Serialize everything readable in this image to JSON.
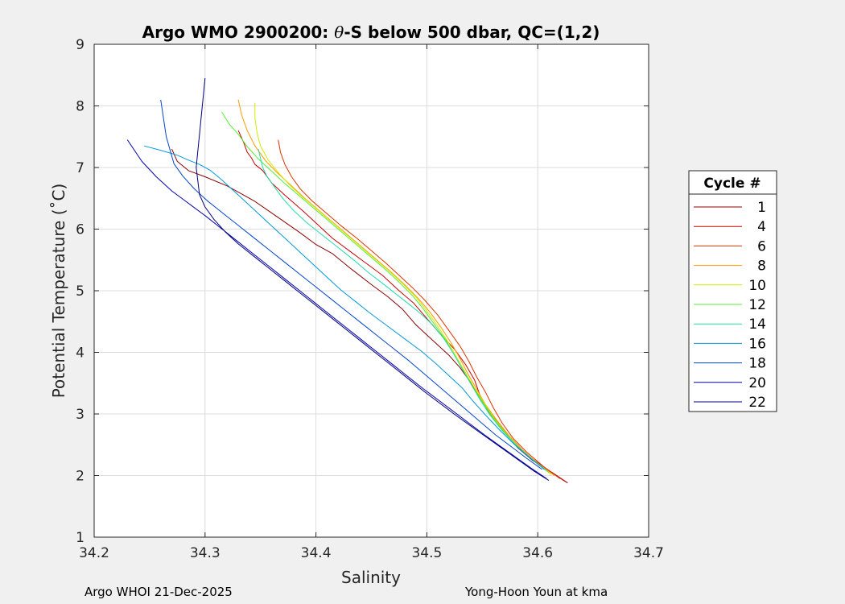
{
  "chart_data": {
    "type": "line",
    "title_prefix": "Argo WMO 2900200: ",
    "title_theta": "θ",
    "title_suffix": "-S below 500 dbar,  QC=(1,2)",
    "xlabel": "Salinity",
    "ylabel": "Potential Temperature (˚C)",
    "xlim": [
      34.2,
      34.7
    ],
    "ylim": [
      1,
      9
    ],
    "xticks": [
      "34.2",
      "34.3",
      "34.4",
      "34.5",
      "34.6",
      "34.7"
    ],
    "yticks": [
      "1",
      "2",
      "3",
      "4",
      "5",
      "6",
      "7",
      "8",
      "9"
    ],
    "grid": true,
    "legend": {
      "title": "Cycle #",
      "placement": "outside-right",
      "entries": [
        "1",
        "4",
        "6",
        "8",
        "10",
        "12",
        "14",
        "16",
        "18",
        "20",
        "22"
      ]
    },
    "series": [
      {
        "name": "1",
        "color": "#8b0000",
        "S": [
          34.627,
          34.613,
          34.595,
          34.582,
          34.571,
          34.56,
          34.55,
          34.54,
          34.53,
          34.52,
          34.505,
          34.49,
          34.478,
          34.465,
          34.45,
          34.432,
          34.415,
          34.4,
          34.385,
          34.365,
          34.345,
          34.32,
          34.3,
          34.285,
          34.275,
          34.27
        ],
        "T": [
          1.88,
          2.05,
          2.25,
          2.45,
          2.7,
          2.95,
          3.2,
          3.5,
          3.75,
          3.95,
          4.2,
          4.45,
          4.7,
          4.9,
          5.1,
          5.35,
          5.6,
          5.75,
          5.95,
          6.2,
          6.45,
          6.7,
          6.85,
          6.95,
          7.1,
          7.3
        ]
      },
      {
        "name": "4",
        "color": "#cc0000",
        "S": [
          34.625,
          34.61,
          34.593,
          34.578,
          34.565,
          34.555,
          34.548,
          34.543,
          34.535,
          34.525,
          34.512,
          34.5,
          34.488,
          34.475,
          34.46,
          34.445,
          34.43,
          34.415,
          34.4,
          34.388,
          34.372,
          34.36,
          34.352,
          34.345,
          34.342,
          34.338,
          34.335,
          34.33
        ],
        "T": [
          1.9,
          2.08,
          2.3,
          2.55,
          2.8,
          3.05,
          3.3,
          3.55,
          3.8,
          4.05,
          4.3,
          4.55,
          4.8,
          5.0,
          5.25,
          5.45,
          5.65,
          5.85,
          6.1,
          6.3,
          6.55,
          6.75,
          6.95,
          7.05,
          7.15,
          7.25,
          7.4,
          7.6
        ]
      },
      {
        "name": "6",
        "color": "#dd3300",
        "S": [
          34.62,
          34.605,
          34.59,
          34.578,
          34.568,
          34.56,
          34.553,
          34.545,
          34.538,
          34.53,
          34.52,
          34.51,
          34.498,
          34.487,
          34.475,
          34.463,
          34.45,
          34.437,
          34.423,
          34.41,
          34.397,
          34.386,
          34.378,
          34.372,
          34.368,
          34.366
        ],
        "T": [
          1.95,
          2.15,
          2.38,
          2.6,
          2.85,
          3.1,
          3.35,
          3.6,
          3.85,
          4.1,
          4.35,
          4.6,
          4.85,
          5.05,
          5.25,
          5.45,
          5.65,
          5.85,
          6.05,
          6.25,
          6.45,
          6.65,
          6.85,
          7.05,
          7.25,
          7.45
        ]
      },
      {
        "name": "8",
        "color": "#ff9900",
        "S": [
          34.615,
          34.6,
          34.586,
          34.574,
          34.563,
          34.553,
          34.545,
          34.537,
          34.53,
          34.522,
          34.513,
          34.503,
          34.492,
          34.48,
          34.468,
          34.455,
          34.442,
          34.429,
          34.416,
          34.403,
          34.39,
          34.378,
          34.366,
          34.355,
          34.345,
          34.338,
          34.333,
          34.33
        ],
        "T": [
          2.0,
          2.2,
          2.42,
          2.65,
          2.9,
          3.15,
          3.4,
          3.65,
          3.9,
          4.15,
          4.4,
          4.65,
          4.88,
          5.1,
          5.3,
          5.5,
          5.7,
          5.9,
          6.1,
          6.3,
          6.5,
          6.7,
          6.9,
          7.1,
          7.35,
          7.6,
          7.85,
          8.1
        ]
      },
      {
        "name": "10",
        "color": "#ccee00",
        "S": [
          34.612,
          34.598,
          34.584,
          34.572,
          34.561,
          34.552,
          34.543,
          34.535,
          34.527,
          34.519,
          34.51,
          34.5,
          34.49,
          34.478,
          34.466,
          34.453,
          34.44,
          34.427,
          34.414,
          34.401,
          34.388,
          34.376,
          34.366,
          34.357,
          34.35,
          34.347,
          34.345,
          34.345
        ],
        "T": [
          2.02,
          2.22,
          2.44,
          2.67,
          2.92,
          3.17,
          3.42,
          3.67,
          3.92,
          4.17,
          4.42,
          4.67,
          4.9,
          5.12,
          5.32,
          5.52,
          5.72,
          5.92,
          6.12,
          6.32,
          6.52,
          6.72,
          6.92,
          7.12,
          7.35,
          7.55,
          7.8,
          8.05
        ]
      },
      {
        "name": "12",
        "color": "#55ee33",
        "S": [
          34.61,
          34.596,
          34.582,
          34.57,
          34.559,
          34.55,
          34.541,
          34.533,
          34.525,
          34.517,
          34.507,
          34.497,
          34.487,
          34.475,
          34.463,
          34.45,
          34.437,
          34.424,
          34.411,
          34.398,
          34.385,
          34.372,
          34.36,
          34.348,
          34.338,
          34.33,
          34.322,
          34.315
        ],
        "T": [
          2.05,
          2.25,
          2.47,
          2.7,
          2.95,
          3.2,
          3.45,
          3.7,
          3.95,
          4.2,
          4.45,
          4.7,
          4.92,
          5.14,
          5.34,
          5.54,
          5.74,
          5.94,
          6.14,
          6.34,
          6.54,
          6.74,
          6.94,
          7.14,
          7.34,
          7.54,
          7.7,
          7.9
        ]
      },
      {
        "name": "14",
        "color": "#22ddaa",
        "S": [
          34.608,
          34.594,
          34.58,
          34.568,
          34.557,
          34.548,
          34.54,
          34.532,
          34.524,
          34.515,
          34.505,
          34.495,
          34.484,
          34.472,
          34.46,
          34.447,
          34.434,
          34.42,
          34.406,
          34.392,
          34.38,
          34.37,
          34.362,
          34.356,
          34.352,
          34.35,
          34.348
        ],
        "T": [
          2.08,
          2.28,
          2.5,
          2.73,
          2.98,
          3.23,
          3.48,
          3.73,
          3.98,
          4.23,
          4.45,
          4.62,
          4.78,
          4.95,
          5.12,
          5.3,
          5.5,
          5.7,
          5.9,
          6.1,
          6.3,
          6.5,
          6.7,
          6.85,
          7.0,
          7.15,
          7.3
        ]
      },
      {
        "name": "16",
        "color": "#0099dd",
        "S": [
          34.606,
          34.592,
          34.578,
          34.565,
          34.553,
          34.542,
          34.532,
          34.52,
          34.508,
          34.495,
          34.48,
          34.465,
          34.45,
          34.436,
          34.422,
          34.41,
          34.398,
          34.386,
          34.374,
          34.362,
          34.35,
          34.338,
          34.326,
          34.315,
          34.305,
          34.295,
          34.285,
          34.275,
          34.26,
          34.245
        ],
        "T": [
          2.1,
          2.3,
          2.52,
          2.75,
          2.98,
          3.2,
          3.42,
          3.62,
          3.82,
          4.02,
          4.22,
          4.42,
          4.62,
          4.82,
          5.02,
          5.22,
          5.42,
          5.62,
          5.82,
          6.02,
          6.22,
          6.42,
          6.62,
          6.8,
          6.95,
          7.05,
          7.12,
          7.2,
          7.28,
          7.35
        ]
      },
      {
        "name": "18",
        "color": "#0044cc",
        "S": [
          34.604,
          34.59,
          34.576,
          34.562,
          34.549,
          34.536,
          34.523,
          34.51,
          34.497,
          34.484,
          34.47,
          34.456,
          34.442,
          34.428,
          34.414,
          34.4,
          34.386,
          34.372,
          34.358,
          34.344,
          34.33,
          34.316,
          34.302,
          34.29,
          34.28,
          34.272,
          34.265,
          34.26
        ],
        "T": [
          2.1,
          2.28,
          2.47,
          2.66,
          2.86,
          3.06,
          3.26,
          3.46,
          3.66,
          3.86,
          4.06,
          4.26,
          4.46,
          4.66,
          4.86,
          5.06,
          5.26,
          5.46,
          5.66,
          5.86,
          6.06,
          6.26,
          6.46,
          6.66,
          6.86,
          7.06,
          7.5,
          8.1
        ]
      },
      {
        "name": "20",
        "color": "#0000aa",
        "S": [
          34.608,
          34.594,
          34.58,
          34.566,
          34.552,
          34.538,
          34.524,
          34.51,
          34.496,
          34.482,
          34.468,
          34.454,
          34.44,
          34.426,
          34.412,
          34.398,
          34.384,
          34.37,
          34.356,
          34.342,
          34.328,
          34.314,
          34.3,
          34.285,
          34.27,
          34.256,
          34.243,
          34.23
        ],
        "T": [
          1.95,
          2.12,
          2.3,
          2.48,
          2.66,
          2.85,
          3.04,
          3.23,
          3.42,
          3.62,
          3.82,
          4.02,
          4.22,
          4.42,
          4.62,
          4.82,
          5.02,
          5.22,
          5.42,
          5.62,
          5.82,
          6.02,
          6.22,
          6.42,
          6.62,
          6.85,
          7.1,
          7.45
        ]
      },
      {
        "name": "22",
        "color": "#000080",
        "S": [
          34.61,
          34.596,
          34.582,
          34.568,
          34.554,
          34.54,
          34.526,
          34.512,
          34.498,
          34.484,
          34.47,
          34.456,
          34.442,
          34.428,
          34.414,
          34.4,
          34.386,
          34.372,
          34.358,
          34.344,
          34.33,
          34.318,
          34.308,
          34.3,
          34.295,
          34.292,
          34.3
        ],
        "T": [
          1.92,
          2.08,
          2.26,
          2.44,
          2.62,
          2.8,
          2.98,
          3.17,
          3.36,
          3.56,
          3.76,
          3.96,
          4.16,
          4.36,
          4.56,
          4.76,
          4.96,
          5.16,
          5.36,
          5.56,
          5.76,
          5.96,
          6.16,
          6.36,
          6.56,
          7.0,
          8.45
        ]
      }
    ]
  },
  "footer": {
    "left": "Argo WHOI 21-Dec-2025",
    "right": "Yong-Hoon Youn at kma"
  }
}
